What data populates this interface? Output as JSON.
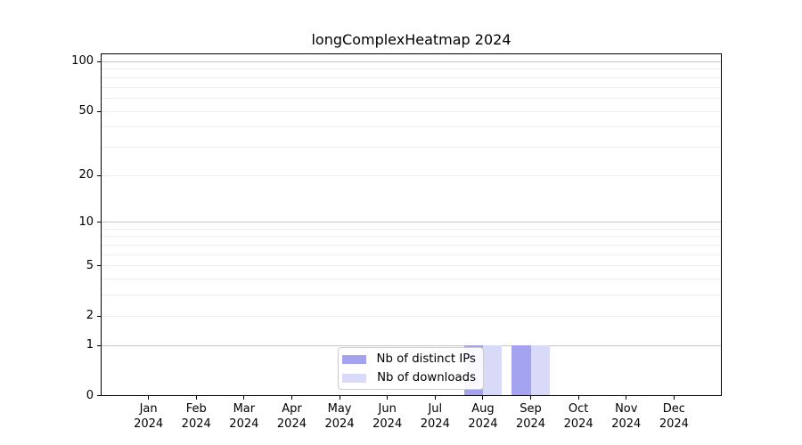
{
  "chart_data": {
    "type": "bar",
    "title": "longComplexHeatmap 2024",
    "categories": [
      "Jan",
      "Feb",
      "Mar",
      "Apr",
      "May",
      "Jun",
      "Jul",
      "Aug",
      "Sep",
      "Oct",
      "Nov",
      "Dec"
    ],
    "year_label": "2024",
    "series": [
      {
        "name": "Nb of distinct IPs",
        "color": "#a3a3ef",
        "values": [
          0,
          0,
          0,
          0,
          0,
          0,
          0,
          1,
          1,
          0,
          0,
          0
        ]
      },
      {
        "name": "Nb of downloads",
        "color": "#d9d9f8",
        "values": [
          0,
          0,
          0,
          0,
          0,
          0,
          0,
          1,
          1,
          0,
          0,
          0
        ]
      }
    ],
    "xlabel": "",
    "ylabel": "",
    "yscale": "log1p",
    "ylim": [
      0,
      111.8
    ],
    "yticks": [
      100,
      50,
      20,
      10,
      5,
      2,
      1,
      0
    ],
    "grid_minor": [
      2,
      3,
      4,
      5,
      6,
      7,
      8,
      9,
      20,
      30,
      40,
      50,
      60,
      70,
      80,
      90
    ],
    "grid_major": [
      1,
      10,
      100
    ],
    "grid_on": true,
    "legend_position": "lower center",
    "colors": {
      "grid_major": "#c6c6c6",
      "grid_minor": "#ededed",
      "spine": "#000000",
      "text": "#000000",
      "background": "#ffffff"
    }
  }
}
